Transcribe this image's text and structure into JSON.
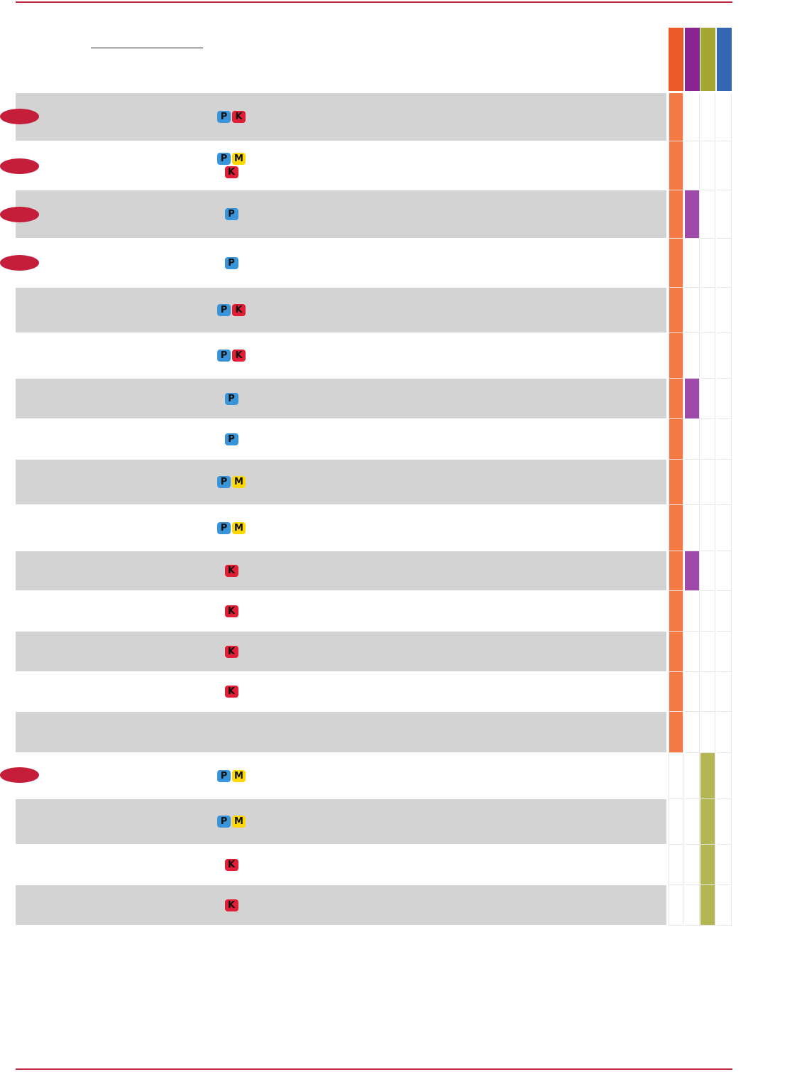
{
  "colors": {
    "accent": "#c0263f",
    "header_columns": [
      "#ed5a2a",
      "#8a2592",
      "#a3a630",
      "#3466b1"
    ],
    "fill_columns": [
      "#f47a45",
      "#9e4aa8",
      "#b4b553",
      "#3466b1"
    ],
    "row_shade": "#d3d3d3",
    "badge_p": "#3a95d8",
    "badge_m": "#ffd800",
    "badge_k": "#e01f36"
  },
  "rows": [
    {
      "shaded": true,
      "marker": true,
      "badges": [
        "P",
        "K"
      ],
      "fills": [
        1,
        0,
        0,
        0
      ]
    },
    {
      "shaded": false,
      "marker": true,
      "badges": [
        "P",
        "M",
        "K"
      ],
      "fills": [
        1,
        0,
        0,
        0
      ]
    },
    {
      "shaded": true,
      "marker": true,
      "badges": [
        "P"
      ],
      "fills": [
        1,
        1,
        0,
        0
      ]
    },
    {
      "shaded": false,
      "marker": true,
      "badges": [
        "P"
      ],
      "fills": [
        1,
        0,
        0,
        0
      ]
    },
    {
      "shaded": true,
      "marker": false,
      "badges": [
        "P",
        "K"
      ],
      "fills": [
        1,
        0,
        0,
        0
      ]
    },
    {
      "shaded": false,
      "marker": false,
      "badges": [
        "P",
        "K"
      ],
      "fills": [
        1,
        0,
        0,
        0
      ]
    },
    {
      "shaded": true,
      "marker": false,
      "badges": [
        "P"
      ],
      "fills": [
        1,
        1,
        0,
        0
      ]
    },
    {
      "shaded": false,
      "marker": false,
      "badges": [
        "P"
      ],
      "fills": [
        1,
        0,
        0,
        0
      ]
    },
    {
      "shaded": true,
      "marker": false,
      "badges": [
        "P",
        "M"
      ],
      "fills": [
        1,
        0,
        0,
        0
      ]
    },
    {
      "shaded": false,
      "marker": false,
      "badges": [
        "P",
        "M"
      ],
      "fills": [
        1,
        0,
        0,
        0
      ]
    },
    {
      "shaded": true,
      "marker": false,
      "badges": [
        "K"
      ],
      "fills": [
        1,
        1,
        0,
        0
      ]
    },
    {
      "shaded": false,
      "marker": false,
      "badges": [
        "K"
      ],
      "fills": [
        1,
        0,
        0,
        0
      ]
    },
    {
      "shaded": true,
      "marker": false,
      "badges": [
        "K"
      ],
      "fills": [
        1,
        0,
        0,
        0
      ]
    },
    {
      "shaded": false,
      "marker": false,
      "badges": [
        "K"
      ],
      "fills": [
        1,
        0,
        0,
        0
      ]
    },
    {
      "shaded": true,
      "marker": false,
      "badges": [],
      "fills": [
        1,
        0,
        0,
        0
      ]
    },
    {
      "shaded": false,
      "marker": true,
      "badges": [
        "P",
        "M"
      ],
      "fills": [
        0,
        0,
        1,
        0
      ]
    },
    {
      "shaded": true,
      "marker": false,
      "badges": [
        "P",
        "M"
      ],
      "fills": [
        0,
        0,
        1,
        0
      ]
    },
    {
      "shaded": false,
      "marker": false,
      "badges": [
        "K"
      ],
      "fills": [
        0,
        0,
        1,
        0
      ]
    },
    {
      "shaded": true,
      "marker": false,
      "badges": [
        "K"
      ],
      "fills": [
        0,
        0,
        1,
        0
      ]
    }
  ]
}
